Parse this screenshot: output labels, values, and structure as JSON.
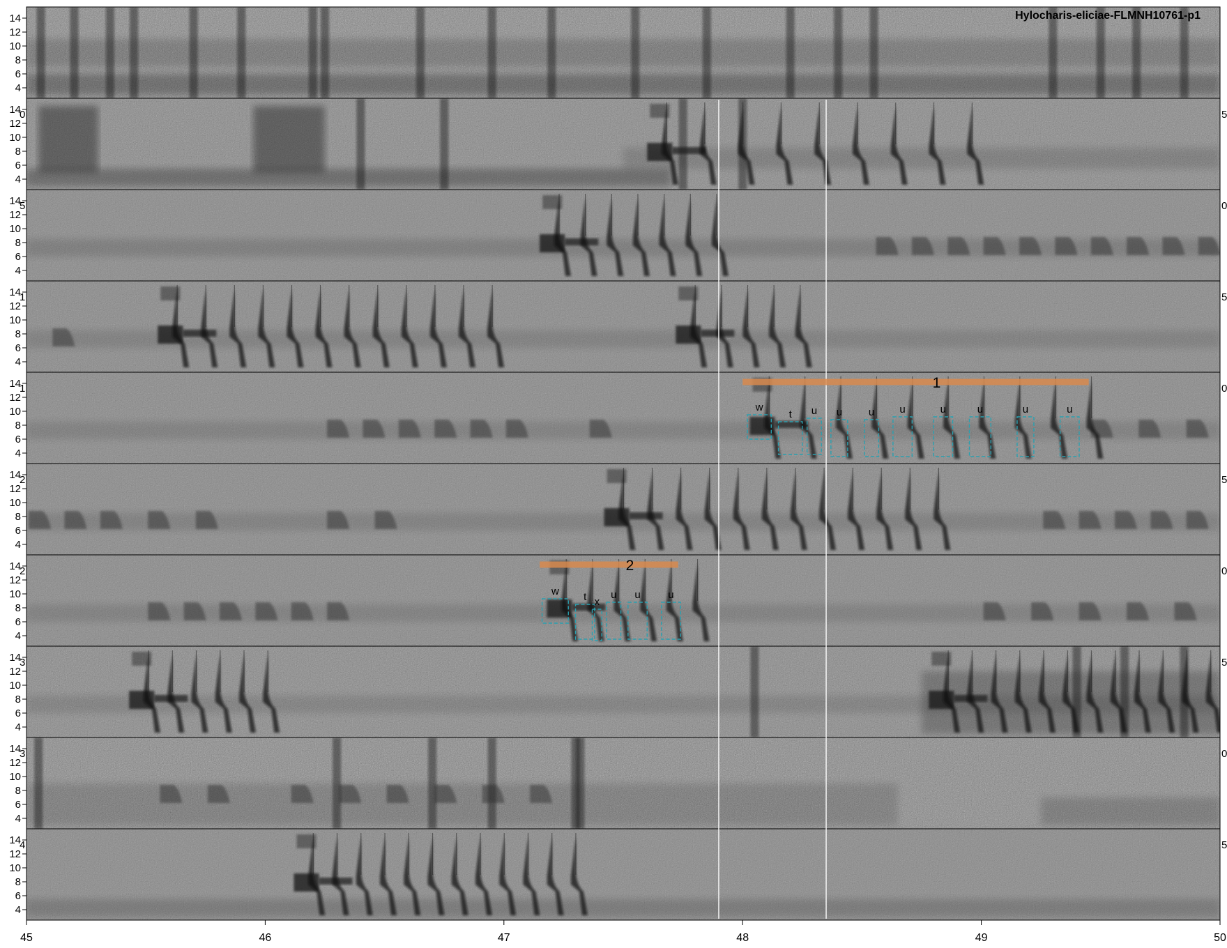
{
  "chart_data": {
    "type": "spectrogram",
    "title": "Hylocharis-eliciae-FLMNH10761-p1",
    "xlabel": "",
    "ylabel": "",
    "x_ticks": [
      "45",
      "46",
      "47",
      "48",
      "49",
      "50"
    ],
    "xlim": [
      45,
      50
    ],
    "y_ticks": [
      "4",
      "6",
      "8",
      "10",
      "12",
      "14"
    ],
    "ylim": [
      2.5,
      15.6
    ],
    "rows": 10,
    "left_row_labels": [
      "",
      "0",
      "5",
      "1",
      "1",
      "2",
      "2",
      "3",
      "3",
      "4"
    ],
    "right_row_labels": [
      "",
      "5",
      "0",
      "5",
      "0",
      "5",
      "0",
      "5",
      "0",
      "5"
    ],
    "selection_lines_x": [
      47.9,
      48.35
    ],
    "background": {
      "row_noise": [
        0.6,
        0.45,
        0.35,
        0.35,
        0.35,
        0.35,
        0.35,
        0.45,
        0.55,
        0.35
      ],
      "dark_bands": [
        {
          "row": 0,
          "x0": 45.0,
          "x1": 50.0,
          "f0": 3.0,
          "f1": 6.0,
          "o": 0.25
        },
        {
          "row": 0,
          "x0": 45.0,
          "x1": 50.0,
          "f0": 7.0,
          "f1": 11.0,
          "o": 0.15
        },
        {
          "row": 1,
          "x0": 45.0,
          "x1": 47.7,
          "f0": 3.0,
          "f1": 5.5,
          "o": 0.25
        },
        {
          "row": 1,
          "x0": 47.5,
          "x1": 50.0,
          "f0": 5.5,
          "f1": 8.5,
          "o": 0.12
        },
        {
          "row": 1,
          "x0": 45.05,
          "x1": 45.3,
          "f0": 5.0,
          "f1": 14.5,
          "o": 0.35
        },
        {
          "row": 1,
          "x0": 45.95,
          "x1": 46.25,
          "f0": 5.0,
          "f1": 14.5,
          "o": 0.35
        },
        {
          "row": 2,
          "x0": 45.0,
          "x1": 50.0,
          "f0": 6.0,
          "f1": 8.5,
          "o": 0.12
        },
        {
          "row": 3,
          "x0": 45.0,
          "x1": 50.0,
          "f0": 6.0,
          "f1": 8.5,
          "o": 0.1
        },
        {
          "row": 4,
          "x0": 45.0,
          "x1": 50.0,
          "f0": 6.0,
          "f1": 8.5,
          "o": 0.1
        },
        {
          "row": 5,
          "x0": 45.0,
          "x1": 50.0,
          "f0": 6.0,
          "f1": 8.5,
          "o": 0.1
        },
        {
          "row": 6,
          "x0": 45.0,
          "x1": 50.0,
          "f0": 6.0,
          "f1": 8.5,
          "o": 0.1
        },
        {
          "row": 7,
          "x0": 45.0,
          "x1": 50.0,
          "f0": 6.0,
          "f1": 8.5,
          "o": 0.1
        },
        {
          "row": 7,
          "x0": 48.75,
          "x1": 50.0,
          "f0": 3.0,
          "f1": 12.0,
          "o": 0.2
        },
        {
          "row": 8,
          "x0": 45.0,
          "x1": 48.65,
          "f0": 3.0,
          "f1": 9.0,
          "o": 0.12
        },
        {
          "row": 8,
          "x0": 49.25,
          "x1": 50.0,
          "f0": 3.0,
          "f1": 7.0,
          "o": 0.15
        },
        {
          "row": 9,
          "x0": 45.0,
          "x1": 50.0,
          "f0": 3.0,
          "f1": 5.5,
          "o": 0.15
        }
      ],
      "stripes": [
        {
          "row": 0,
          "x": [
            45.06,
            45.2,
            45.35,
            45.45,
            45.7,
            45.9,
            46.2,
            46.25,
            46.65,
            46.95,
            47.2,
            47.55,
            47.85,
            48.2,
            48.4,
            48.55,
            49.3,
            49.5,
            49.65,
            49.85
          ]
        },
        {
          "row": 1,
          "x": [
            46.4,
            46.75,
            47.75,
            48.0
          ]
        },
        {
          "row": 7,
          "x": [
            48.05,
            49.4,
            49.6,
            49.85
          ]
        },
        {
          "row": 8,
          "x": [
            45.05,
            46.3,
            46.7,
            46.95,
            47.3,
            47.32
          ]
        }
      ]
    },
    "song_groups": [
      {
        "row": 1,
        "start": 47.6,
        "notes": 9,
        "gap": 0.16
      },
      {
        "row": 2,
        "start": 47.15,
        "notes": 7,
        "gap": 0.11
      },
      {
        "row": 3,
        "start": 45.55,
        "notes": 12,
        "gap": 0.12
      },
      {
        "row": 3,
        "start": 47.72,
        "notes": 5,
        "gap": 0.11
      },
      {
        "row": 4,
        "start": 48.03,
        "notes": 10,
        "gap": 0.15
      },
      {
        "row": 5,
        "start": 47.42,
        "notes": 12,
        "gap": 0.12
      },
      {
        "row": 6,
        "start": 47.18,
        "notes": 6,
        "gap": 0.11
      },
      {
        "row": 7,
        "start": 45.43,
        "notes": 6,
        "gap": 0.1
      },
      {
        "row": 7,
        "start": 48.78,
        "notes": 12,
        "gap": 0.1
      },
      {
        "row": 9,
        "start": 46.12,
        "notes": 12,
        "gap": 0.1
      }
    ],
    "soft_notes": [
      {
        "row": 2,
        "x": [
          48.6,
          48.75,
          48.9,
          49.05,
          49.2,
          49.35,
          49.5,
          49.65,
          49.8,
          49.95
        ]
      },
      {
        "row": 3,
        "x": [
          45.15
        ]
      },
      {
        "row": 4,
        "x": [
          46.3,
          46.45,
          46.6,
          46.75,
          46.9,
          47.05,
          47.4,
          49.5,
          49.7,
          49.9
        ]
      },
      {
        "row": 5,
        "x": [
          45.05,
          45.2,
          45.35,
          45.55,
          45.75,
          46.3,
          46.5,
          49.3,
          49.45,
          49.6,
          49.75,
          49.9
        ]
      },
      {
        "row": 6,
        "x": [
          45.55,
          45.7,
          45.85,
          46.0,
          46.15,
          46.3,
          49.05,
          49.25,
          49.45,
          49.65,
          49.85
        ]
      },
      {
        "row": 8,
        "x": [
          45.6,
          45.8,
          46.15,
          46.35,
          46.55,
          46.75,
          46.95,
          47.15
        ]
      }
    ],
    "annotations": [
      {
        "row": 4,
        "label": "1",
        "bracket": [
          48.0,
          49.45
        ],
        "bracket_freq": 14.2,
        "notes": [
          {
            "label": "w",
            "x0": 48.02,
            "x1": 48.12,
            "f0": 6.0,
            "f1": 9.5
          },
          {
            "label": "t",
            "x0": 48.15,
            "x1": 48.25,
            "f0": 3.8,
            "f1": 8.5
          },
          {
            "label": "u",
            "x0": 48.27,
            "x1": 48.33,
            "f0": 3.8,
            "f1": 9.0
          },
          {
            "label": "u",
            "x0": 48.37,
            "x1": 48.44,
            "f0": 3.5,
            "f1": 8.8
          },
          {
            "label": "u",
            "x0": 48.51,
            "x1": 48.57,
            "f0": 3.5,
            "f1": 8.8
          },
          {
            "label": "u",
            "x0": 48.63,
            "x1": 48.71,
            "f0": 3.5,
            "f1": 9.2
          },
          {
            "label": "u",
            "x0": 48.8,
            "x1": 48.88,
            "f0": 3.5,
            "f1": 9.2
          },
          {
            "label": "u",
            "x0": 48.95,
            "x1": 49.04,
            "f0": 3.5,
            "f1": 9.2
          },
          {
            "label": "u",
            "x0": 49.15,
            "x1": 49.22,
            "f0": 3.5,
            "f1": 9.2
          },
          {
            "label": "u",
            "x0": 49.33,
            "x1": 49.41,
            "f0": 3.5,
            "f1": 9.2
          }
        ]
      },
      {
        "row": 6,
        "label": "2",
        "bracket": [
          47.15,
          47.73
        ],
        "bracket_freq": 14.2,
        "notes": [
          {
            "label": "w",
            "x0": 47.16,
            "x1": 47.27,
            "f0": 5.8,
            "f1": 9.3
          },
          {
            "label": "t",
            "x0": 47.3,
            "x1": 47.38,
            "f0": 3.5,
            "f1": 8.5
          },
          {
            "label": "x",
            "x0": 47.37,
            "x1": 47.41,
            "f0": 3.3,
            "f1": 7.8
          },
          {
            "label": "u",
            "x0": 47.43,
            "x1": 47.49,
            "f0": 3.5,
            "f1": 8.8
          },
          {
            "label": "u",
            "x0": 47.52,
            "x1": 47.6,
            "f0": 3.5,
            "f1": 8.8
          },
          {
            "label": "u",
            "x0": 47.66,
            "x1": 47.74,
            "f0": 3.5,
            "f1": 8.8
          }
        ]
      }
    ],
    "colors": {
      "frame": "#000000",
      "background": "#8b8b8b",
      "box": "#2aa0b0",
      "bracket": "#d98a4e",
      "selection_line": "#ffffff"
    }
  }
}
